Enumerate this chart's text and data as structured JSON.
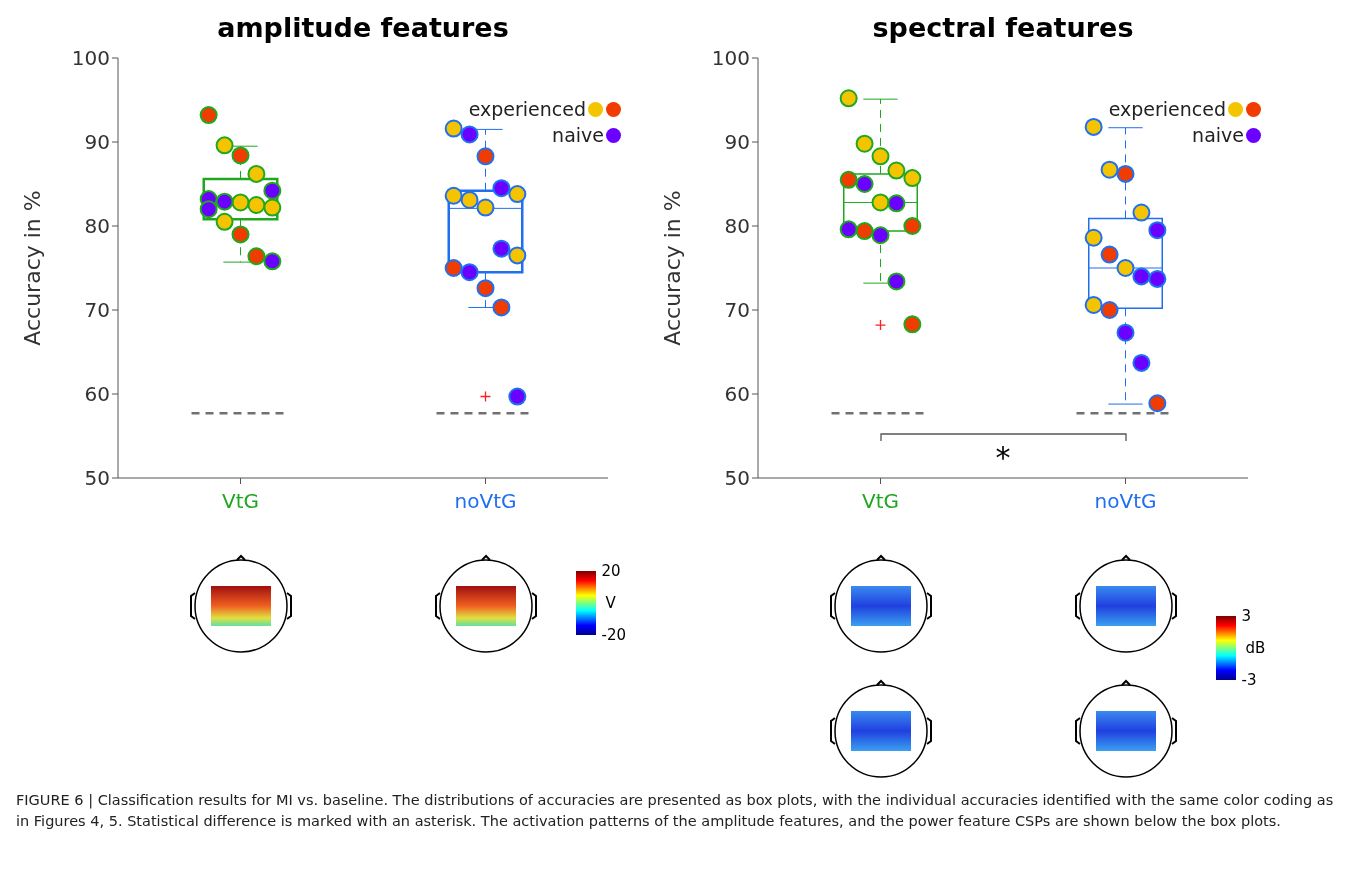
{
  "chart_data": [
    {
      "type": "box",
      "title": "amplitude features",
      "ylabel": "Accuracy in %",
      "categories": [
        "VtG",
        "noVtG"
      ],
      "colors": [
        "#1fa81f",
        "#1f6ff0"
      ],
      "ylim": [
        50,
        100
      ],
      "yticks": [
        50,
        60,
        70,
        80,
        90,
        100
      ],
      "legend": "top right",
      "boxes": [
        {
          "low": 75.7,
          "q1": 80.8,
          "median": 82.6,
          "q3": 85.6,
          "high": 89.5
        },
        {
          "low": 70.3,
          "q1": 74.5,
          "median": 82.1,
          "q3": 84.2,
          "high": 91.5,
          "outliers": [
            59.7
          ]
        }
      ],
      "series": [
        {
          "type": "scatter",
          "name": "experienced",
          "color": "#f5c400",
          "x": [
            "VtG",
            "VtG",
            "VtG",
            "VtG",
            "VtG",
            "VtG",
            "noVtG",
            "noVtG",
            "noVtG",
            "noVtG",
            "noVtG",
            "noVtG"
          ],
          "values": [
            89.6,
            86.2,
            82.8,
            82.5,
            82.2,
            80.5,
            91.6,
            83.8,
            83.6,
            83.1,
            82.2,
            76.5
          ]
        },
        {
          "type": "scatter",
          "color": "#f03c00",
          "x": [
            "VtG",
            "VtG",
            "VtG",
            "VtG",
            "noVtG",
            "noVtG",
            "noVtG",
            "noVtG"
          ],
          "values": [
            93.2,
            88.4,
            79.0,
            76.4,
            88.3,
            75.0,
            72.6,
            70.3
          ]
        },
        {
          "type": "scatter",
          "name": "naive",
          "color": "#6a00ff",
          "x": [
            "VtG",
            "VtG",
            "VtG",
            "VtG",
            "VtG",
            "noVtG",
            "noVtG",
            "noVtG",
            "noVtG",
            "noVtG"
          ],
          "values": [
            84.2,
            83.2,
            82.9,
            82.0,
            75.8,
            90.9,
            84.5,
            77.3,
            74.5,
            59.7
          ]
        }
      ],
      "ref_lines": [
        {
          "axis": "y",
          "value": 57.7,
          "color": "#707070",
          "line_style": "dashed"
        }
      ],
      "annotations": [
        "20",
        "V",
        "-20"
      ]
    },
    {
      "type": "box",
      "title": "spectral features",
      "ylabel": "Accuracy in %",
      "categories": [
        "VtG",
        "noVtG"
      ],
      "colors": [
        "#1fa81f",
        "#1f6ff0"
      ],
      "ylim": [
        50,
        100
      ],
      "yticks": [
        50,
        60,
        70,
        80,
        90,
        100
      ],
      "legend": "top right",
      "boxes": [
        {
          "low": 73.2,
          "q1": 79.4,
          "median": 82.8,
          "q3": 86.2,
          "high": 95.1,
          "outliers": [
            68.2
          ]
        },
        {
          "low": 58.8,
          "q1": 70.2,
          "median": 75.0,
          "q3": 80.9,
          "high": 91.7
        }
      ],
      "series": [
        {
          "type": "scatter",
          "name": "experienced",
          "color": "#f5c400",
          "x": [
            "VtG",
            "VtG",
            "VtG",
            "VtG",
            "VtG",
            "VtG",
            "noVtG",
            "noVtG",
            "noVtG",
            "noVtG",
            "noVtG",
            "noVtG"
          ],
          "values": [
            95.2,
            89.8,
            88.3,
            86.6,
            85.7,
            82.8,
            91.8,
            86.7,
            81.6,
            78.6,
            75.0,
            70.6
          ]
        },
        {
          "type": "scatter",
          "color": "#f03c00",
          "x": [
            "VtG",
            "VtG",
            "VtG",
            "VtG",
            "noVtG",
            "noVtG",
            "noVtG",
            "noVtG"
          ],
          "values": [
            85.5,
            80.0,
            79.4,
            68.3,
            86.2,
            76.6,
            70.0,
            58.9
          ]
        },
        {
          "type": "scatter",
          "name": "naive",
          "color": "#6a00ff",
          "x": [
            "VtG",
            "VtG",
            "VtG",
            "VtG",
            "VtG",
            "noVtG",
            "noVtG",
            "noVtG",
            "noVtG",
            "noVtG"
          ],
          "values": [
            85.0,
            82.7,
            79.6,
            78.9,
            73.4,
            79.5,
            74.0,
            73.7,
            67.3,
            63.7
          ]
        }
      ],
      "ref_lines": [
        {
          "axis": "y",
          "value": 57.7,
          "color": "#707070",
          "line_style": "dashed"
        }
      ],
      "annotations": [
        "3",
        "dB",
        "-3",
        "*",
        "FIGURE 6 | Classification results for MI vs. baseline. The distributions of accuracies are presented as box plots, with the individual accuracies identified with the same color coding as in Figures 4, 5. Statistical difference is marked with an asterisk. The activation patterns of the amplitude features, and the power feature CSPs are shown below the box plots."
      ]
    }
  ]
}
